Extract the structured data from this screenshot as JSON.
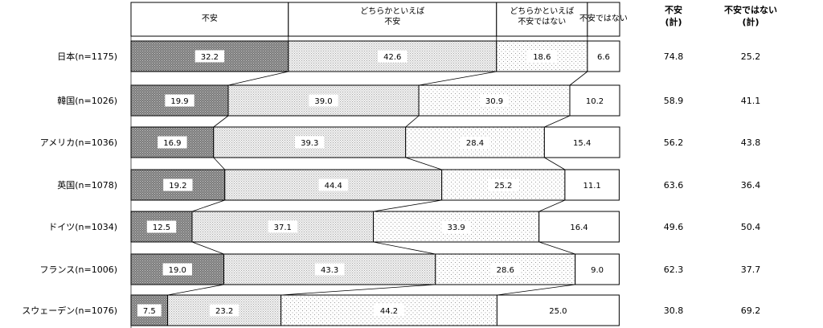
{
  "chart_data": {
    "type": "bar",
    "orientation": "horizontal",
    "stacked": true,
    "categories": [
      "日本(n=1175)",
      "韓国(n=1026)",
      "アメリカ(n=1036)",
      "英国(n=1078)",
      "ドイツ(n=1034)",
      "フランス(n=1006)",
      "スウェーデン(n=1076)"
    ],
    "series": [
      {
        "name": "不安",
        "values": [
          32.2,
          19.9,
          16.9,
          19.2,
          12.5,
          19.0,
          7.5
        ],
        "labels": [
          "32.2",
          "19.9",
          "16.9",
          "19.2",
          "12.5",
          "19.0",
          "7.5"
        ],
        "color": "#8c8c8c"
      },
      {
        "name": "どちらかといえば 不安",
        "values": [
          42.6,
          39.0,
          39.3,
          44.4,
          37.1,
          43.3,
          23.2
        ],
        "labels": [
          "42.6",
          "39.0",
          "39.3",
          "44.4",
          "37.1",
          "43.3",
          "23.2"
        ],
        "color": "#e0e0e0"
      },
      {
        "name": "どちらかといえば 不安ではない",
        "values": [
          18.6,
          30.9,
          28.4,
          25.2,
          33.9,
          28.6,
          44.2
        ],
        "labels": [
          "18.6",
          "30.9",
          "28.4",
          "25.2",
          "33.9",
          "28.6",
          "44.2"
        ],
        "color": "#f7f7f7"
      },
      {
        "name": "不安ではない",
        "values": [
          6.6,
          10.2,
          15.4,
          11.1,
          16.4,
          9.0,
          25.0
        ],
        "labels": [
          "6.6",
          "10.2",
          "15.4",
          "11.1",
          "16.4",
          "9.0",
          "25.0"
        ],
        "color": "#ffffff"
      }
    ],
    "header_lines": [
      [
        "不安"
      ],
      [
        "どちらかといえば",
        "不安"
      ],
      [
        "どちらかといえば",
        "不安ではない"
      ],
      [
        "不安ではない"
      ]
    ],
    "totals": {
      "headers": [
        {
          "lines": [
            "不安",
            "(計)"
          ]
        },
        {
          "lines": [
            "不安ではない",
            "(計)"
          ]
        }
      ],
      "anxious": [
        "74.8",
        "58.9",
        "56.2",
        "63.6",
        "49.6",
        "62.3",
        "30.8"
      ],
      "not_anxious": [
        "25.2",
        "41.1",
        "43.8",
        "36.4",
        "50.4",
        "37.7",
        "69.2"
      ]
    },
    "xlim": [
      0,
      100
    ],
    "legend": "top",
    "grid": false
  }
}
